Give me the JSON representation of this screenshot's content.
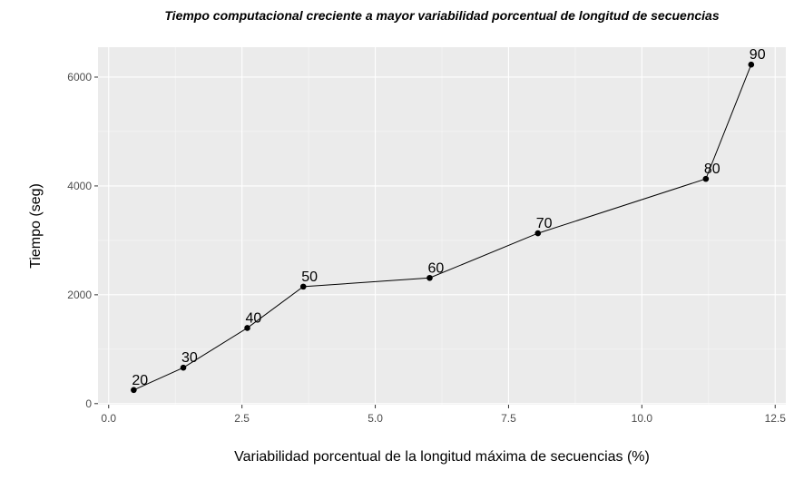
{
  "chart_data": {
    "type": "line",
    "title": "Tiempo computacional creciente a mayor variabilidad porcentual de longitud de secuencias",
    "xlabel": "Variabilidad porcentual de la longitud máxima de secuencias (%)",
    "ylabel": "Tiempo (seg)",
    "xlim": [
      -0.2,
      12.7
    ],
    "ylim": [
      -20,
      6550
    ],
    "x_ticks": [
      0.0,
      2.5,
      5.0,
      7.5,
      10.0,
      12.5
    ],
    "x_tick_labels": [
      "0.0",
      "2.5",
      "5.0",
      "7.5",
      "10.0",
      "12.5"
    ],
    "y_ticks": [
      0,
      2000,
      4000,
      6000
    ],
    "y_tick_labels": [
      "0",
      "2000",
      "4000",
      "6000"
    ],
    "grid": true,
    "background": "#ebebeb",
    "series": [
      {
        "x": [
          0.47,
          1.4,
          2.6,
          3.65,
          6.02,
          8.05,
          11.2,
          12.05
        ],
        "y": [
          250,
          660,
          1390,
          2150,
          2310,
          3130,
          4130,
          6230
        ],
        "labels": [
          "20",
          "30",
          "40",
          "50",
          "60",
          "70",
          "80",
          "90"
        ],
        "color": "#000000"
      }
    ]
  }
}
